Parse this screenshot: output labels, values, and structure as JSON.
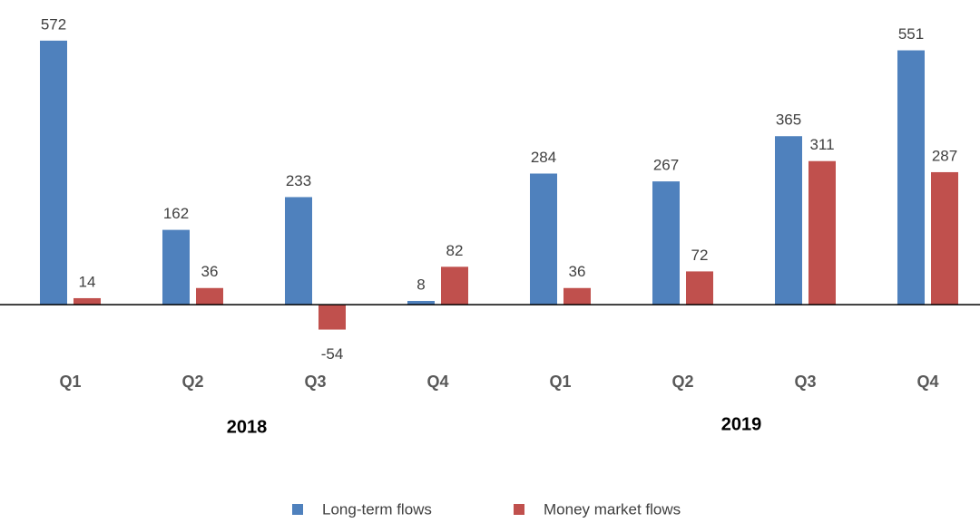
{
  "chart_data": {
    "type": "bar",
    "categories": [
      "Q1",
      "Q2",
      "Q3",
      "Q4",
      "Q1",
      "Q2",
      "Q3",
      "Q4"
    ],
    "groups": [
      "2018",
      "2019"
    ],
    "series": [
      {
        "name": "Long-term flows",
        "color": "#4f81bd",
        "values": [
          572,
          162,
          233,
          8,
          284,
          267,
          365,
          551
        ]
      },
      {
        "name": "Money market flows",
        "color": "#c0504d",
        "values": [
          14,
          36,
          -54,
          82,
          36,
          72,
          311,
          287
        ]
      }
    ],
    "ylim": [
      -100,
      620
    ],
    "legend": "bottom"
  }
}
